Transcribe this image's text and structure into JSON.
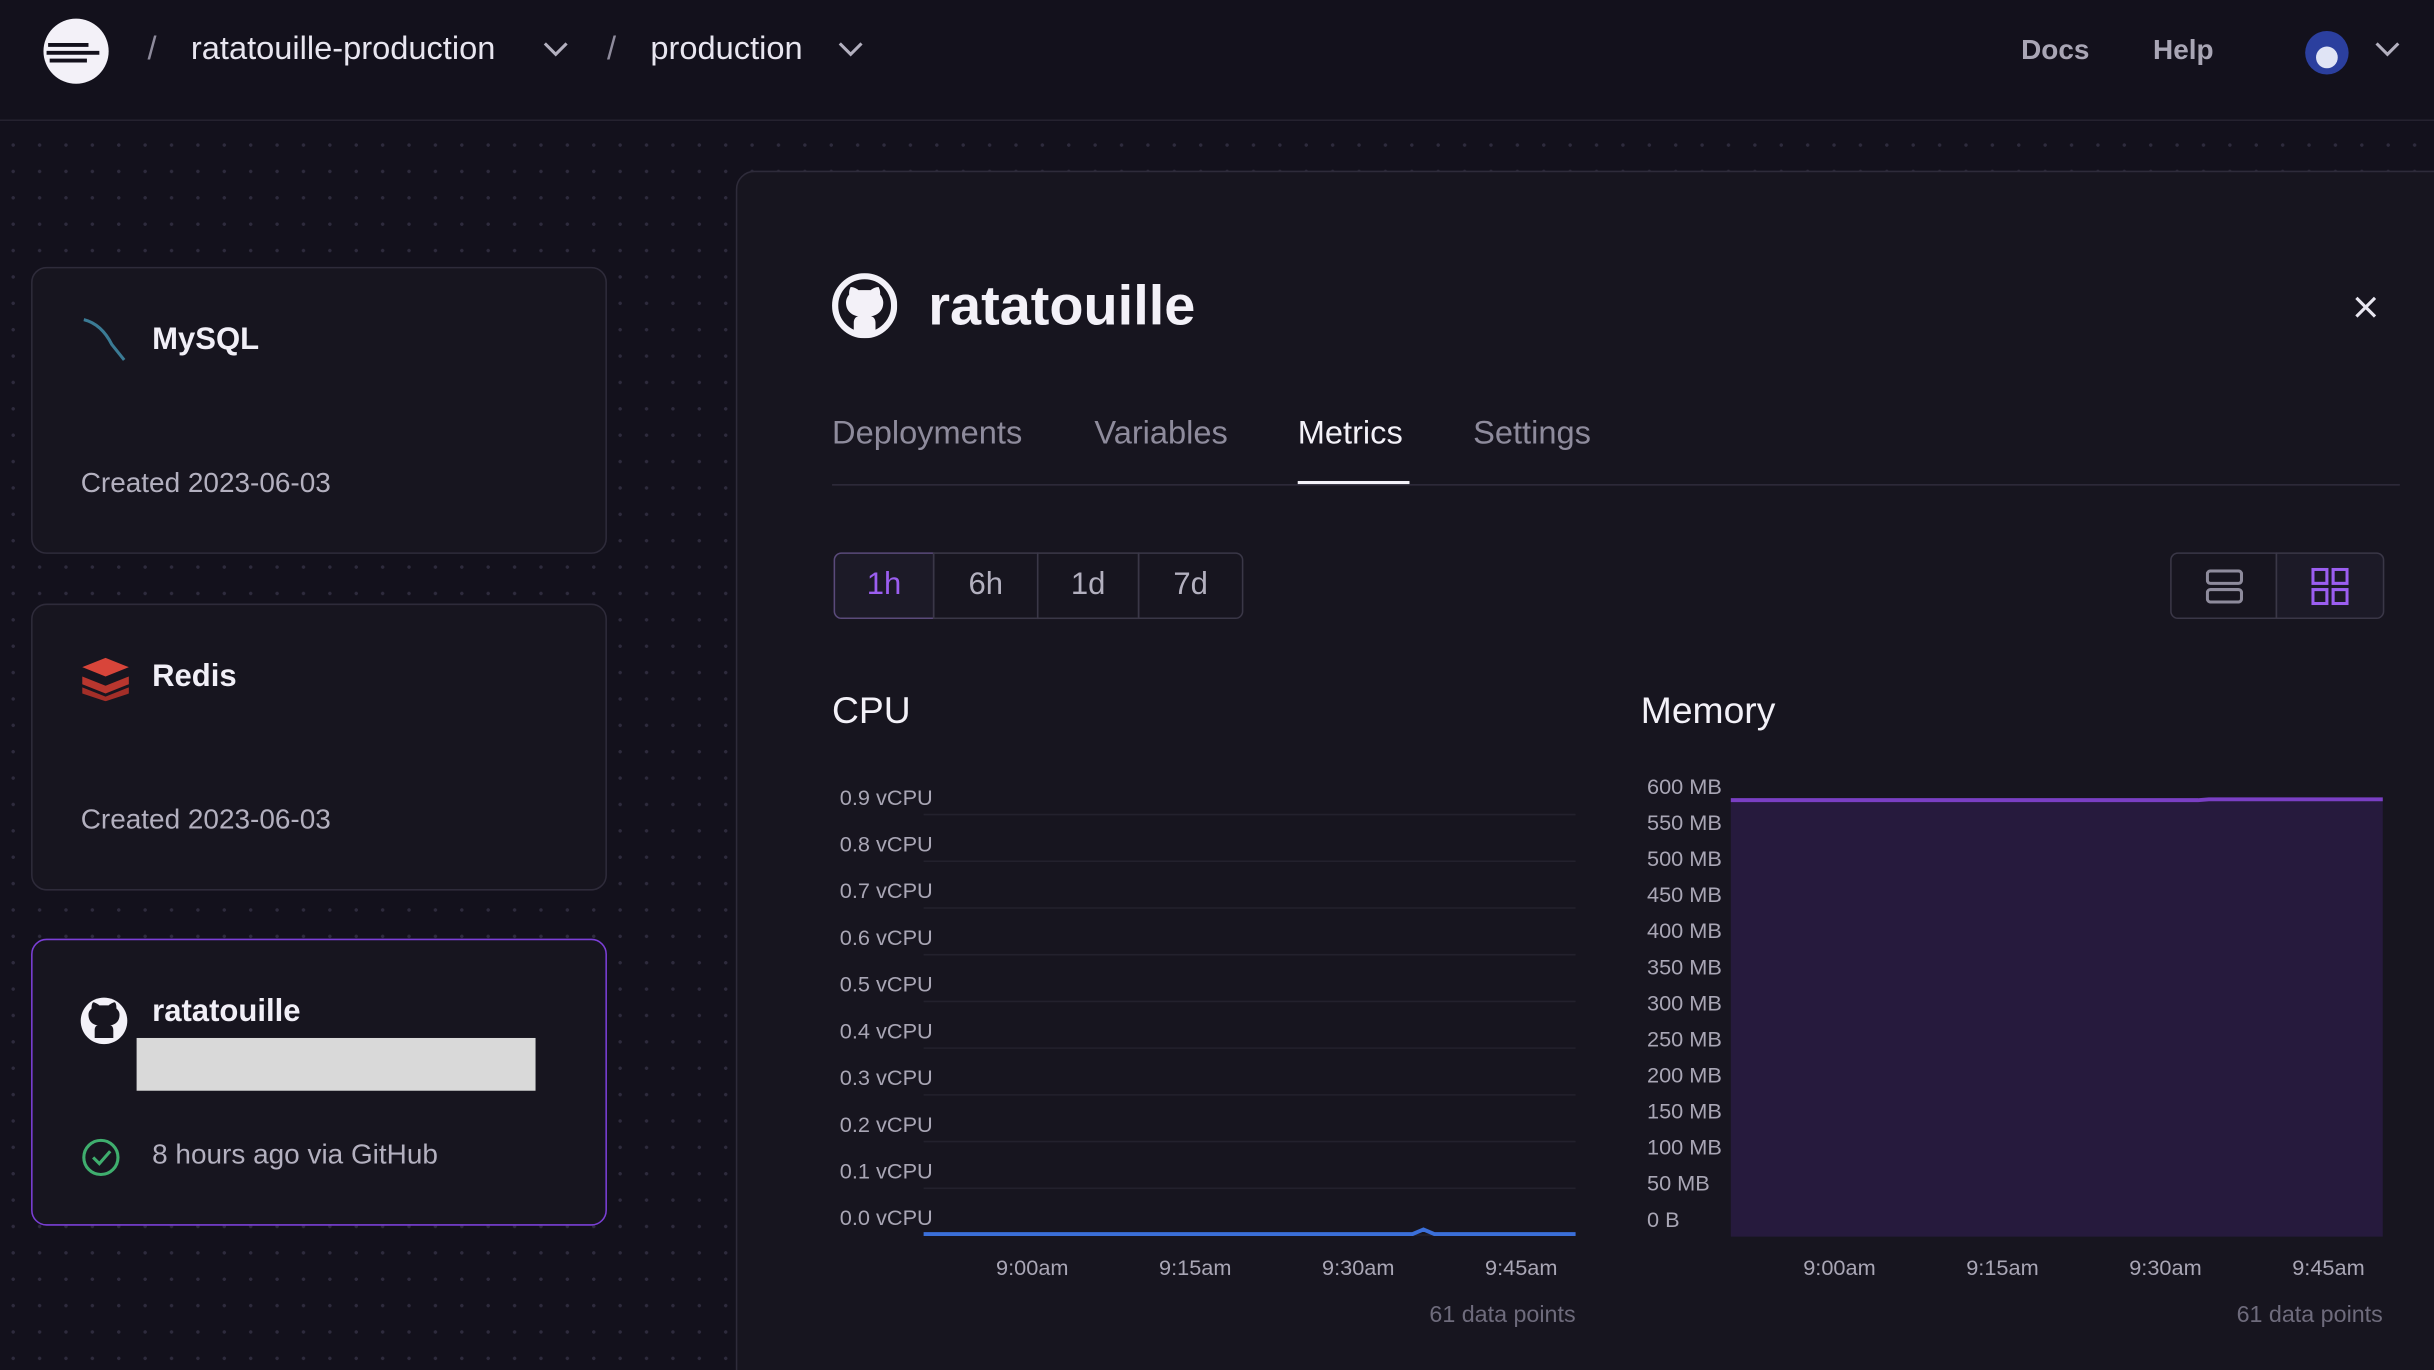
{
  "nav": {
    "project": "ratatouille-production",
    "environment": "production",
    "links": [
      "Docs",
      "Help"
    ]
  },
  "services": [
    {
      "name": "MySQL",
      "status": "Created 2023-06-03"
    },
    {
      "name": "Redis",
      "status": "Created 2023-06-03"
    },
    {
      "name": "ratatouille",
      "status": "8 hours ago via GitHub"
    }
  ],
  "panel": {
    "title": "ratatouille",
    "tabs": [
      "Deployments",
      "Variables",
      "Metrics",
      "Settings"
    ],
    "ranges": [
      "1h",
      "6h",
      "1d",
      "7d"
    ]
  },
  "chart_data": [
    {
      "type": "line",
      "title": "CPU",
      "footnote": "61 data points",
      "color": "#3b6fd9",
      "grid": true,
      "x": [
        530,
        531,
        532,
        533,
        534,
        535,
        536,
        537,
        538,
        539,
        540,
        541,
        542,
        543,
        544,
        545,
        546,
        547,
        548,
        549,
        550,
        551,
        552,
        553,
        554,
        555,
        556,
        557,
        558,
        559,
        560,
        561,
        562,
        563,
        564,
        565,
        566,
        567,
        568,
        569,
        570,
        571,
        572,
        573,
        574,
        575,
        576,
        577,
        578,
        579,
        580,
        581,
        582,
        583,
        584,
        585,
        586,
        587,
        588,
        589,
        590
      ],
      "values": [
        0.002,
        0.002,
        0.002,
        0.002,
        0.002,
        0.002,
        0.002,
        0.002,
        0.002,
        0.002,
        0.002,
        0.002,
        0.002,
        0.002,
        0.002,
        0.002,
        0.002,
        0.002,
        0.002,
        0.002,
        0.002,
        0.002,
        0.002,
        0.002,
        0.002,
        0.002,
        0.002,
        0.002,
        0.002,
        0.002,
        0.002,
        0.002,
        0.002,
        0.002,
        0.002,
        0.002,
        0.002,
        0.002,
        0.002,
        0.002,
        0.002,
        0.002,
        0.002,
        0.002,
        0.002,
        0.002,
        0.012,
        0.002,
        0.002,
        0.002,
        0.002,
        0.002,
        0.002,
        0.002,
        0.002,
        0.002,
        0.002,
        0.002,
        0.002,
        0.002,
        0.002
      ],
      "xlim": [
        530,
        590
      ],
      "xticks": [
        {
          "value": 540,
          "label": "9:00am"
        },
        {
          "value": 555,
          "label": "9:15am"
        },
        {
          "value": 570,
          "label": "9:30am"
        },
        {
          "value": 585,
          "label": "9:45am"
        }
      ],
      "ylim": [
        0,
        0.9
      ],
      "yticks": [
        {
          "value": 0.9,
          "label": "0.9 vCPU"
        },
        {
          "value": 0.8,
          "label": "0.8 vCPU"
        },
        {
          "value": 0.7,
          "label": "0.7 vCPU"
        },
        {
          "value": 0.6,
          "label": "0.6 vCPU"
        },
        {
          "value": 0.5,
          "label": "0.5 vCPU"
        },
        {
          "value": 0.4,
          "label": "0.4 vCPU"
        },
        {
          "value": 0.3,
          "label": "0.3 vCPU"
        },
        {
          "value": 0.2,
          "label": "0.2 vCPU"
        },
        {
          "value": 0.1,
          "label": "0.1 vCPU"
        },
        {
          "value": 0,
          "label": "0.0 vCPU"
        }
      ]
    },
    {
      "type": "area",
      "title": "Memory",
      "footnote": "61 data points",
      "color": "#7a3fc4",
      "fill": "#261a3d",
      "grid": false,
      "x": [
        530,
        531,
        532,
        533,
        534,
        535,
        536,
        537,
        538,
        539,
        540,
        541,
        542,
        543,
        544,
        545,
        546,
        547,
        548,
        549,
        550,
        551,
        552,
        553,
        554,
        555,
        556,
        557,
        558,
        559,
        560,
        561,
        562,
        563,
        564,
        565,
        566,
        567,
        568,
        569,
        570,
        571,
        572,
        573,
        574,
        575,
        576,
        577,
        578,
        579,
        580,
        581,
        582,
        583,
        584,
        585,
        586,
        587,
        588,
        589,
        590
      ],
      "values": [
        605,
        605,
        605,
        605,
        605,
        605,
        605,
        605,
        605,
        605,
        605,
        605,
        605,
        605,
        605,
        605,
        605,
        605,
        605,
        605,
        605,
        605,
        605,
        605,
        605,
        605,
        605,
        605,
        605,
        605,
        605,
        605,
        605,
        605,
        605,
        605,
        605,
        605,
        605,
        605,
        605,
        605,
        605,
        605,
        606,
        606,
        606,
        606,
        606,
        606,
        606,
        606,
        606,
        606,
        606,
        606,
        606,
        606,
        606,
        606,
        606
      ],
      "xlim": [
        530,
        590
      ],
      "xticks": [
        {
          "value": 540,
          "label": "9:00am"
        },
        {
          "value": 555,
          "label": "9:15am"
        },
        {
          "value": 570,
          "label": "9:30am"
        },
        {
          "value": 585,
          "label": "9:45am"
        }
      ],
      "ylim": [
        0,
        600
      ],
      "yticks": [
        {
          "value": 600,
          "label": "600 MB"
        },
        {
          "value": 550,
          "label": "550 MB"
        },
        {
          "value": 500,
          "label": "500 MB"
        },
        {
          "value": 450,
          "label": "450 MB"
        },
        {
          "value": 400,
          "label": "400 MB"
        },
        {
          "value": 350,
          "label": "350 MB"
        },
        {
          "value": 300,
          "label": "300 MB"
        },
        {
          "value": 250,
          "label": "250 MB"
        },
        {
          "value": 200,
          "label": "200 MB"
        },
        {
          "value": 150,
          "label": "150 MB"
        },
        {
          "value": 100,
          "label": "100 MB"
        },
        {
          "value": 50,
          "label": "50 MB"
        },
        {
          "value": 0,
          "label": "0 B"
        }
      ]
    }
  ]
}
